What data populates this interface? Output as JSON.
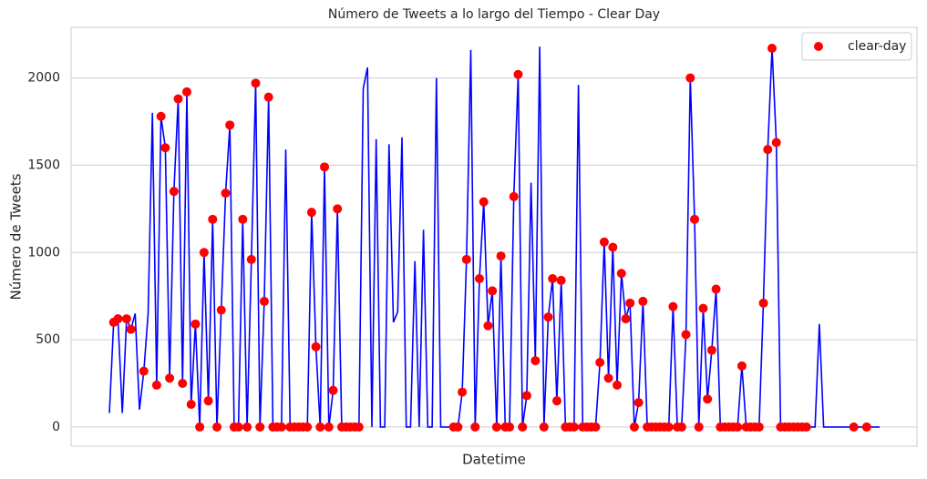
{
  "chart_data": {
    "type": "line-scatter",
    "title": "Número de Tweets a lo largo del Tiempo - Clear Day",
    "x_label": "Datetime",
    "y_label": "Número de Tweets",
    "categories": [
      null,
      null,
      null,
      null,
      null,
      null,
      null,
      null,
      null,
      null,
      null,
      null,
      null,
      null,
      null,
      null,
      null,
      null,
      null,
      null,
      null,
      null,
      null,
      null,
      null,
      null,
      null,
      null,
      null,
      null,
      null,
      null,
      null,
      null,
      null,
      null,
      null,
      null,
      null,
      null,
      null,
      null,
      null,
      null,
      null,
      null,
      null,
      null,
      null,
      null,
      null,
      null,
      null,
      null,
      null,
      null,
      null,
      null,
      null,
      null,
      null,
      null,
      null,
      null,
      null,
      null,
      null,
      null,
      null,
      null,
      null,
      null,
      null,
      null,
      null,
      null,
      null,
      null,
      null,
      null,
      null,
      null,
      null,
      null,
      null,
      null,
      null,
      null,
      null,
      null,
      null,
      null,
      null,
      null,
      null,
      null,
      null,
      null,
      null,
      null,
      null,
      null,
      null,
      null,
      null,
      null,
      null,
      null,
      null,
      null,
      null,
      null,
      null,
      null,
      null,
      null,
      null,
      null,
      null,
      null,
      null,
      null,
      null,
      null,
      null,
      null,
      null,
      null,
      null,
      null,
      null,
      null,
      null,
      null,
      null,
      null,
      null,
      null,
      null,
      null,
      null,
      null,
      null,
      null,
      null,
      null,
      null,
      null,
      null,
      null,
      null,
      null,
      null,
      null,
      null,
      null,
      null,
      null,
      null,
      null,
      null,
      null,
      null,
      null,
      null,
      null,
      null,
      null,
      null,
      null,
      null,
      null,
      null,
      null,
      null,
      null,
      null,
      null,
      null,
      null
    ],
    "series": [
      {
        "color": "#0000ff",
        "values": [
          80,
          600,
          620,
          80,
          620,
          560,
          650,
          100,
          320,
          650,
          1800,
          240,
          1780,
          1600,
          280,
          1350,
          1880,
          250,
          1920,
          130,
          590,
          0,
          1000,
          150,
          1190,
          0,
          670,
          1340,
          1730,
          0,
          0,
          1190,
          0,
          960,
          1970,
          0,
          720,
          1890,
          0,
          0,
          0,
          1590,
          0,
          0,
          0,
          0,
          0,
          1230,
          460,
          0,
          1490,
          0,
          210,
          1250,
          0,
          0,
          0,
          0,
          0,
          1940,
          2060,
          0,
          1650,
          0,
          0,
          1620,
          600,
          660,
          1660,
          0,
          0,
          950,
          0,
          1130,
          0,
          0,
          2000,
          0,
          0,
          0,
          0,
          0,
          200,
          960,
          2160,
          0,
          850,
          1290,
          580,
          780,
          0,
          980,
          0,
          0,
          1320,
          2020,
          0,
          180,
          1400,
          380,
          2180,
          0,
          630,
          850,
          150,
          840,
          0,
          0,
          0,
          1960,
          0,
          0,
          0,
          0,
          370,
          1060,
          280,
          1030,
          240,
          880,
          620,
          710,
          0,
          140,
          720,
          0,
          0,
          0,
          0,
          0,
          0,
          690,
          0,
          0,
          530,
          2000,
          1190,
          0,
          680,
          160,
          440,
          790,
          0,
          0,
          0,
          0,
          0,
          350,
          0,
          0,
          0,
          0,
          710,
          1590,
          2170,
          1630,
          0,
          0,
          0,
          0,
          0,
          0,
          0,
          0,
          0,
          590,
          0,
          0,
          0,
          0,
          0,
          0,
          0,
          0,
          0,
          0,
          0,
          0,
          0,
          0
        ]
      },
      {
        "name": "clear-day",
        "color": "#ff0000",
        "values": [
          null,
          600,
          620,
          null,
          620,
          560,
          null,
          null,
          320,
          null,
          null,
          240,
          1780,
          1600,
          280,
          1350,
          1880,
          250,
          1920,
          130,
          590,
          0,
          1000,
          150,
          1190,
          0,
          670,
          1340,
          1730,
          0,
          0,
          1190,
          0,
          960,
          1970,
          0,
          720,
          1890,
          0,
          0,
          0,
          null,
          0,
          0,
          0,
          0,
          0,
          1230,
          460,
          0,
          1490,
          0,
          210,
          1250,
          0,
          0,
          0,
          0,
          0,
          null,
          null,
          null,
          null,
          null,
          null,
          null,
          null,
          null,
          null,
          null,
          null,
          null,
          null,
          null,
          null,
          null,
          null,
          null,
          null,
          null,
          0,
          0,
          200,
          960,
          null,
          0,
          850,
          1290,
          580,
          780,
          0,
          980,
          0,
          0,
          1320,
          2020,
          0,
          180,
          null,
          380,
          null,
          0,
          630,
          850,
          150,
          840,
          0,
          0,
          0,
          null,
          0,
          0,
          0,
          0,
          370,
          1060,
          280,
          1030,
          240,
          880,
          620,
          710,
          0,
          140,
          720,
          0,
          0,
          0,
          0,
          0,
          0,
          690,
          0,
          0,
          530,
          2000,
          1190,
          0,
          680,
          160,
          440,
          790,
          0,
          0,
          0,
          0,
          0,
          350,
          0,
          0,
          0,
          0,
          710,
          1590,
          2170,
          1630,
          0,
          0,
          0,
          0,
          0,
          0,
          0,
          null,
          null,
          null,
          null,
          null,
          null,
          null,
          null,
          null,
          null,
          0,
          null,
          null,
          0,
          null,
          null,
          null
        ]
      }
    ],
    "ylim": [
      -110,
      2290
    ],
    "yticks": [
      0,
      500,
      1000,
      1500,
      2000
    ],
    "grid": true,
    "legend": "upper right"
  }
}
